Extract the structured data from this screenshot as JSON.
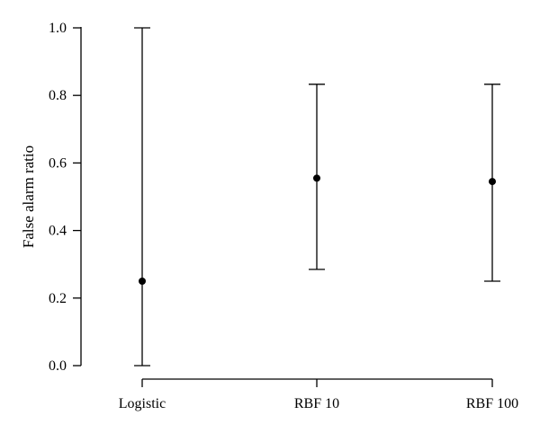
{
  "chart_data": {
    "type": "scatter",
    "title": "",
    "xlabel": "",
    "ylabel": "False alarm ratio",
    "ylim": [
      0.0,
      1.0
    ],
    "yticks": [
      "0.0",
      "0.2",
      "0.4",
      "0.6",
      "0.8",
      "1.0"
    ],
    "categories": [
      "Logistic",
      "RBF 10",
      "RBF 100"
    ],
    "series": [
      {
        "values": [
          0.25,
          0.555,
          0.545
        ],
        "lower": [
          0.0,
          0.285,
          0.25
        ],
        "upper": [
          1.0,
          0.833,
          0.833
        ]
      }
    ],
    "grid": false,
    "legend": "none"
  }
}
